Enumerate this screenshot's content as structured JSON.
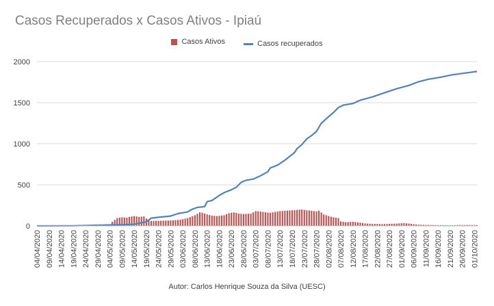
{
  "chart_data": {
    "type": "bar+line",
    "title": "Casos Recuperados x Casos Ativos - Ipiaú",
    "footer": "Autor: Carlos Henrique Souza da Silva (UESC)",
    "legend_position": "top",
    "ylim": [
      0,
      2000
    ],
    "yticks": [
      "0",
      "500",
      "1000",
      "1500",
      "2000"
    ],
    "grid": true,
    "x_start": "04/04/2020",
    "x_end": "02/10/2020",
    "xtick_labels": [
      "04/04/2020",
      "09/04/2020",
      "14/04/2020",
      "19/04/2020",
      "24/04/2020",
      "29/04/2020",
      "04/05/2020",
      "09/05/2020",
      "14/05/2020",
      "19/05/2020",
      "24/05/2020",
      "29/05/2020",
      "03/06/2020",
      "08/06/2020",
      "13/06/2020",
      "18/06/2020",
      "23/06/2020",
      "28/06/2020",
      "03/07/2020",
      "08/07/2020",
      "13/07/2020",
      "18/07/2020",
      "23/07/2020",
      "28/07/2020",
      "02/08/2020",
      "07/08/2020",
      "12/08/2020",
      "17/08/2020",
      "22/08/2020",
      "27/08/2020",
      "01/09/2020",
      "06/09/2020",
      "11/09/2020",
      "16/09/2020",
      "21/09/2020",
      "26/09/2020",
      "01/10/2020"
    ],
    "colors": {
      "ativos": "#c0504d",
      "recuperados": "#4f81bd",
      "grid": "#d9d9d9"
    },
    "series": [
      {
        "name": "Casos Ativos",
        "type": "bar",
        "points": [
          [
            "04/04/2020",
            0
          ],
          [
            "20/04/2020",
            3
          ],
          [
            "30/04/2020",
            8
          ],
          [
            "04/05/2020",
            15
          ],
          [
            "05/05/2020",
            50
          ],
          [
            "07/05/2020",
            95
          ],
          [
            "09/05/2020",
            105
          ],
          [
            "11/05/2020",
            100
          ],
          [
            "12/05/2020",
            110
          ],
          [
            "14/05/2020",
            120
          ],
          [
            "16/05/2020",
            110
          ],
          [
            "18/05/2020",
            115
          ],
          [
            "19/05/2020",
            90
          ],
          [
            "21/05/2020",
            60
          ],
          [
            "24/05/2020",
            62
          ],
          [
            "27/05/2020",
            65
          ],
          [
            "30/05/2020",
            68
          ],
          [
            "02/06/2020",
            75
          ],
          [
            "05/06/2020",
            95
          ],
          [
            "08/06/2020",
            130
          ],
          [
            "10/06/2020",
            165
          ],
          [
            "11/06/2020",
            160
          ],
          [
            "13/06/2020",
            140
          ],
          [
            "15/06/2020",
            125
          ],
          [
            "17/06/2020",
            120
          ],
          [
            "20/06/2020",
            130
          ],
          [
            "22/06/2020",
            155
          ],
          [
            "24/06/2020",
            165
          ],
          [
            "26/06/2020",
            150
          ],
          [
            "28/06/2020",
            145
          ],
          [
            "01/07/2020",
            150
          ],
          [
            "03/07/2020",
            180
          ],
          [
            "05/07/2020",
            175
          ],
          [
            "07/07/2020",
            165
          ],
          [
            "09/07/2020",
            160
          ],
          [
            "11/07/2020",
            170
          ],
          [
            "13/07/2020",
            180
          ],
          [
            "15/07/2020",
            185
          ],
          [
            "18/07/2020",
            190
          ],
          [
            "20/07/2020",
            195
          ],
          [
            "22/07/2020",
            200
          ],
          [
            "24/07/2020",
            190
          ],
          [
            "26/07/2020",
            185
          ],
          [
            "28/07/2020",
            175
          ],
          [
            "29/07/2020",
            185
          ],
          [
            "31/07/2020",
            140
          ],
          [
            "02/08/2020",
            120
          ],
          [
            "04/08/2020",
            105
          ],
          [
            "06/08/2020",
            95
          ],
          [
            "07/08/2020",
            55
          ],
          [
            "09/08/2020",
            45
          ],
          [
            "12/08/2020",
            50
          ],
          [
            "15/08/2020",
            40
          ],
          [
            "17/08/2020",
            30
          ],
          [
            "20/08/2020",
            25
          ],
          [
            "24/08/2020",
            22
          ],
          [
            "27/08/2020",
            25
          ],
          [
            "30/08/2020",
            28
          ],
          [
            "02/09/2020",
            35
          ],
          [
            "05/09/2020",
            25
          ],
          [
            "08/09/2020",
            15
          ],
          [
            "12/09/2020",
            12
          ],
          [
            "16/09/2020",
            10
          ],
          [
            "20/09/2020",
            8
          ],
          [
            "24/09/2020",
            10
          ],
          [
            "28/09/2020",
            12
          ],
          [
            "02/10/2020",
            10
          ]
        ]
      },
      {
        "name": "Casos recuperados",
        "type": "line",
        "points": [
          [
            "04/04/2020",
            0
          ],
          [
            "19/04/2020",
            2
          ],
          [
            "29/04/2020",
            8
          ],
          [
            "04/05/2020",
            12
          ],
          [
            "09/05/2020",
            15
          ],
          [
            "14/05/2020",
            20
          ],
          [
            "19/05/2020",
            50
          ],
          [
            "21/05/2020",
            95
          ],
          [
            "24/05/2020",
            105
          ],
          [
            "29/05/2020",
            120
          ],
          [
            "01/06/2020",
            150
          ],
          [
            "05/06/2020",
            170
          ],
          [
            "07/06/2020",
            205
          ],
          [
            "09/06/2020",
            225
          ],
          [
            "12/06/2020",
            235
          ],
          [
            "13/06/2020",
            295
          ],
          [
            "15/06/2020",
            310
          ],
          [
            "18/06/2020",
            370
          ],
          [
            "20/06/2020",
            405
          ],
          [
            "23/06/2020",
            440
          ],
          [
            "25/06/2020",
            470
          ],
          [
            "27/06/2020",
            530
          ],
          [
            "29/06/2020",
            555
          ],
          [
            "02/07/2020",
            570
          ],
          [
            "05/07/2020",
            610
          ],
          [
            "08/07/2020",
            660
          ],
          [
            "09/07/2020",
            705
          ],
          [
            "12/07/2020",
            740
          ],
          [
            "15/07/2020",
            800
          ],
          [
            "18/07/2020",
            870
          ],
          [
            "19/07/2020",
            895
          ],
          [
            "20/07/2020",
            940
          ],
          [
            "22/07/2020",
            990
          ],
          [
            "24/07/2020",
            1060
          ],
          [
            "26/07/2020",
            1100
          ],
          [
            "28/07/2020",
            1150
          ],
          [
            "30/07/2020",
            1250
          ],
          [
            "02/08/2020",
            1330
          ],
          [
            "04/08/2020",
            1380
          ],
          [
            "06/08/2020",
            1440
          ],
          [
            "08/08/2020",
            1470
          ],
          [
            "12/08/2020",
            1490
          ],
          [
            "15/08/2020",
            1530
          ],
          [
            "20/08/2020",
            1570
          ],
          [
            "25/08/2020",
            1620
          ],
          [
            "30/08/2020",
            1670
          ],
          [
            "04/09/2020",
            1710
          ],
          [
            "08/09/2020",
            1755
          ],
          [
            "12/09/2020",
            1785
          ],
          [
            "17/09/2020",
            1810
          ],
          [
            "22/09/2020",
            1840
          ],
          [
            "27/09/2020",
            1860
          ],
          [
            "02/10/2020",
            1880
          ]
        ]
      }
    ]
  }
}
